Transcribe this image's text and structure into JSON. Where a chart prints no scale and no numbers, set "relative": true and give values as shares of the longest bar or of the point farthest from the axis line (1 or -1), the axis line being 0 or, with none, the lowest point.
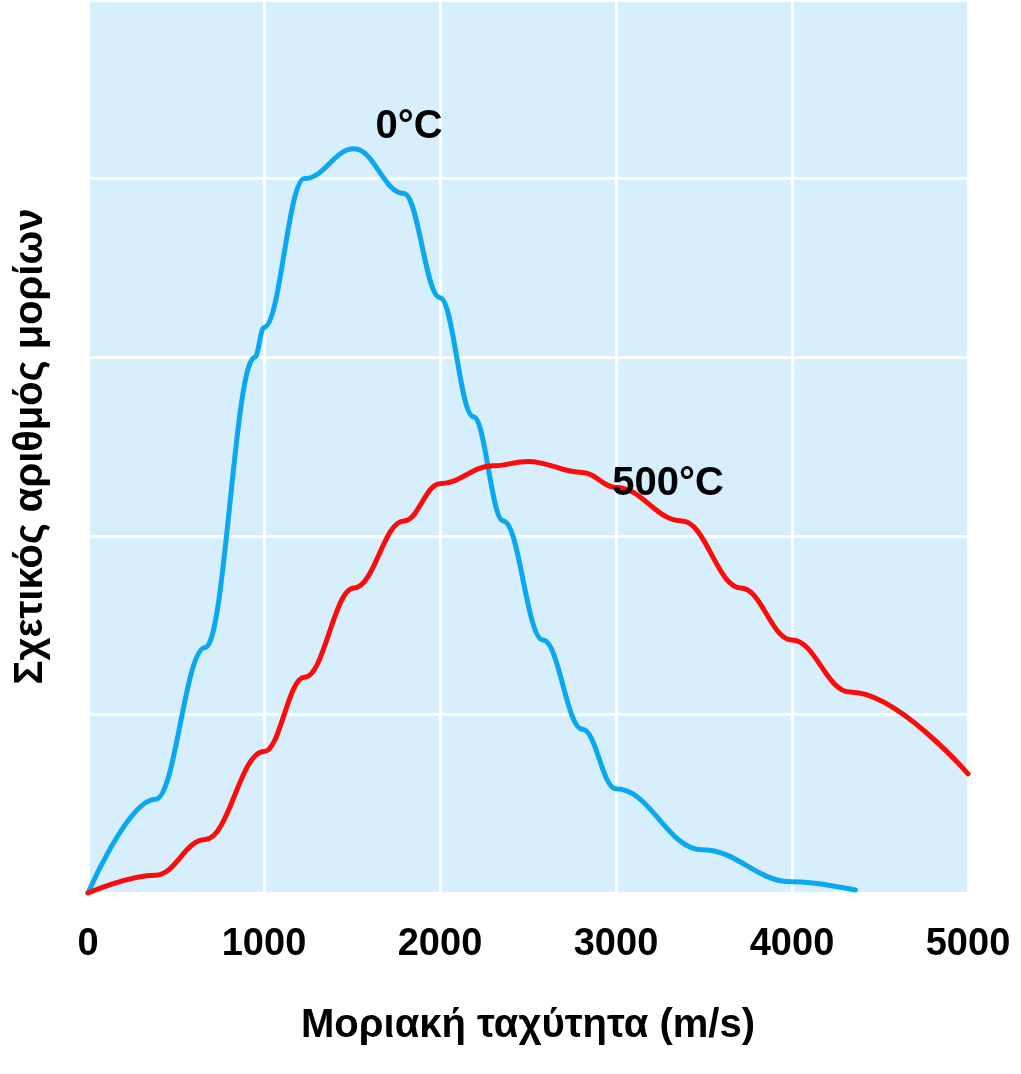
{
  "chart_data": {
    "type": "line",
    "xlabel": "Μοριακή ταχύτητα (m/s)",
    "ylabel": "Σχετικός αριθμός μορίων",
    "relative": true,
    "xlim": [
      0,
      5000
    ],
    "xticks": [
      0,
      1000,
      2000,
      3000,
      4000,
      5000
    ],
    "grid": true,
    "marker": "none",
    "line_style": "solid",
    "series": [
      {
        "name": "0°C",
        "color": "#0aa8f0",
        "x": [
          0,
          384,
          666,
          948,
          1000,
          1230,
          1512,
          1795,
          2000,
          2190,
          2360,
          2585,
          2810,
          3000,
          3490,
          4000,
          4360
        ],
        "values": [
          0,
          0.126,
          0.33,
          0.72,
          0.76,
          0.96,
          1.0,
          0.94,
          0.8,
          0.64,
          0.5,
          0.34,
          0.22,
          0.14,
          0.058,
          0.015,
          0.004
        ]
      },
      {
        "name": "500°C",
        "color": "#ff0a0a",
        "x": [
          0,
          384,
          666,
          1000,
          1230,
          1512,
          1795,
          2000,
          2300,
          2500,
          2810,
          3000,
          3375,
          3710,
          4000,
          4330,
          5000
        ],
        "values": [
          0,
          0.024,
          0.072,
          0.19,
          0.29,
          0.41,
          0.5,
          0.55,
          0.574,
          0.58,
          0.565,
          0.545,
          0.5,
          0.41,
          0.34,
          0.27,
          0.16
        ]
      }
    ]
  }
}
